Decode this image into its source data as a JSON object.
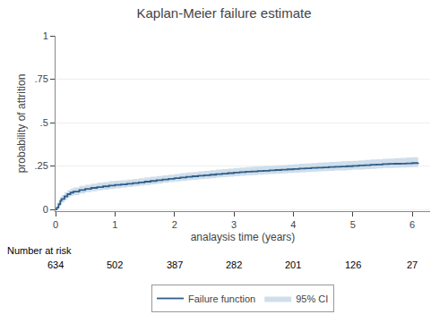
{
  "chart_data": {
    "type": "step",
    "title": "Kaplan-Meier failure estimate",
    "xlabel": "analaysis time (years)",
    "ylabel": "probability of attrition",
    "xlim": [
      0,
      6.3
    ],
    "ylim": [
      -0.01,
      1.0
    ],
    "xticks": [
      0,
      1,
      2,
      3,
      4,
      5,
      6
    ],
    "yticks": [
      0,
      {
        "value": 0.25,
        "label": ".25"
      },
      {
        "value": 0.5,
        "label": ".5"
      },
      {
        "value": 0.75,
        "label": ".75"
      },
      1
    ],
    "grid": "y",
    "legend": "bottom",
    "x": [
      0.0,
      0.02,
      0.05,
      0.08,
      0.1,
      0.15,
      0.2,
      0.25,
      0.3,
      0.4,
      0.5,
      0.6,
      0.7,
      0.8,
      0.9,
      1.0,
      1.1,
      1.2,
      1.3,
      1.4,
      1.5,
      1.6,
      1.7,
      1.8,
      1.9,
      2.0,
      2.1,
      2.2,
      2.3,
      2.4,
      2.5,
      2.6,
      2.7,
      2.8,
      2.9,
      3.0,
      3.1,
      3.2,
      3.3,
      3.4,
      3.5,
      3.6,
      3.7,
      3.8,
      3.9,
      4.0,
      4.1,
      4.2,
      4.3,
      4.4,
      4.5,
      4.6,
      4.7,
      4.8,
      4.9,
      5.0,
      5.1,
      5.2,
      5.3,
      5.4,
      5.5,
      5.6,
      5.7,
      5.8,
      5.9,
      6.0,
      6.1
    ],
    "series": [
      {
        "name": "95% CI",
        "type": "area",
        "color": "#c8d8e8",
        "lower": [
          0.0,
          0.003,
          0.015,
          0.03,
          0.04,
          0.055,
          0.068,
          0.077,
          0.083,
          0.092,
          0.099,
          0.105,
          0.11,
          0.114,
          0.118,
          0.122,
          0.125,
          0.129,
          0.133,
          0.137,
          0.141,
          0.145,
          0.149,
          0.153,
          0.157,
          0.161,
          0.164,
          0.168,
          0.171,
          0.174,
          0.177,
          0.18,
          0.183,
          0.186,
          0.188,
          0.191,
          0.194,
          0.196,
          0.198,
          0.2,
          0.202,
          0.204,
          0.206,
          0.208,
          0.21,
          0.212,
          0.213,
          0.215,
          0.217,
          0.219,
          0.22,
          0.222,
          0.224,
          0.225,
          0.227,
          0.229,
          0.23,
          0.232,
          0.234,
          0.236,
          0.238,
          0.239,
          0.24,
          0.241,
          0.242,
          0.244,
          0.245
        ],
        "upper": [
          0.0,
          0.02,
          0.048,
          0.073,
          0.083,
          0.098,
          0.111,
          0.12,
          0.127,
          0.136,
          0.142,
          0.148,
          0.153,
          0.157,
          0.162,
          0.165,
          0.168,
          0.172,
          0.176,
          0.18,
          0.184,
          0.188,
          0.192,
          0.196,
          0.2,
          0.204,
          0.209,
          0.213,
          0.216,
          0.219,
          0.222,
          0.226,
          0.229,
          0.232,
          0.235,
          0.238,
          0.241,
          0.244,
          0.246,
          0.248,
          0.25,
          0.252,
          0.254,
          0.256,
          0.258,
          0.26,
          0.263,
          0.265,
          0.267,
          0.269,
          0.271,
          0.273,
          0.275,
          0.277,
          0.278,
          0.28,
          0.283,
          0.285,
          0.287,
          0.289,
          0.291,
          0.293,
          0.295,
          0.297,
          0.299,
          0.301,
          0.303
        ]
      },
      {
        "name": "Failure function",
        "type": "step",
        "color": "#2e5f8a",
        "values": [
          0.0,
          0.01,
          0.03,
          0.05,
          0.06,
          0.075,
          0.088,
          0.097,
          0.103,
          0.112,
          0.118,
          0.124,
          0.129,
          0.133,
          0.137,
          0.141,
          0.144,
          0.148,
          0.152,
          0.156,
          0.16,
          0.164,
          0.168,
          0.172,
          0.176,
          0.18,
          0.184,
          0.188,
          0.191,
          0.194,
          0.197,
          0.2,
          0.203,
          0.206,
          0.209,
          0.212,
          0.215,
          0.217,
          0.219,
          0.221,
          0.223,
          0.225,
          0.227,
          0.229,
          0.231,
          0.233,
          0.235,
          0.237,
          0.239,
          0.241,
          0.242,
          0.244,
          0.246,
          0.247,
          0.249,
          0.251,
          0.253,
          0.255,
          0.257,
          0.259,
          0.261,
          0.262,
          0.263,
          0.264,
          0.265,
          0.267,
          0.268
        ]
      }
    ],
    "number_at_risk": {
      "label": "Number at risk",
      "x": [
        0,
        1,
        2,
        3,
        4,
        5,
        6
      ],
      "values": [
        634,
        502,
        387,
        282,
        201,
        126,
        27
      ]
    }
  }
}
